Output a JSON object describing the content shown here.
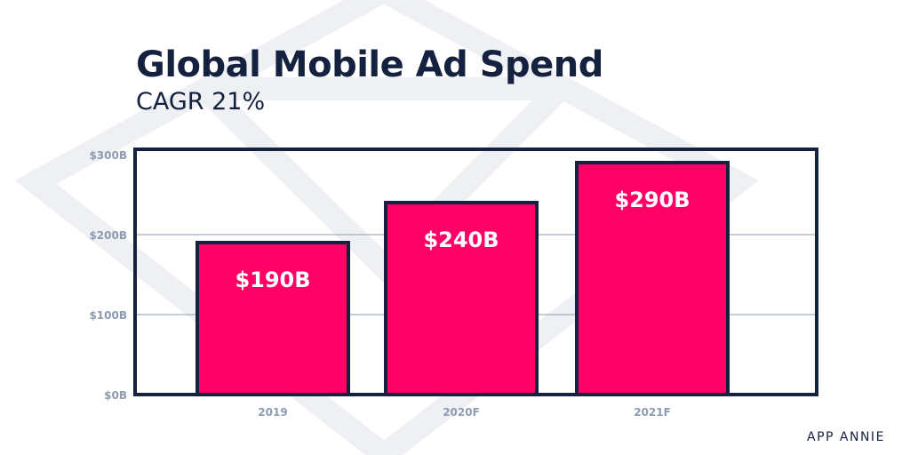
{
  "chart_data": {
    "type": "bar",
    "title": "Global Mobile Ad Spend",
    "subtitle": "CAGR 21%",
    "categories": [
      "2019",
      "2020F",
      "2021F"
    ],
    "values": [
      190,
      240,
      290
    ],
    "data_labels": [
      "$190B",
      "$240B",
      "$290B"
    ],
    "y_ticks": [
      0,
      100,
      200,
      300
    ],
    "y_tick_labels": [
      "$0B",
      "$100B",
      "$200B",
      "$300B"
    ],
    "ylim": [
      0,
      300
    ],
    "xlabel": "",
    "ylabel": "",
    "grid": true,
    "bar_color": "#ff0066",
    "outline_color": "#14213f",
    "grid_color": "#8e9bb1",
    "tick_label_color": "#8e9bb1"
  },
  "brand": "APP ANNIE"
}
